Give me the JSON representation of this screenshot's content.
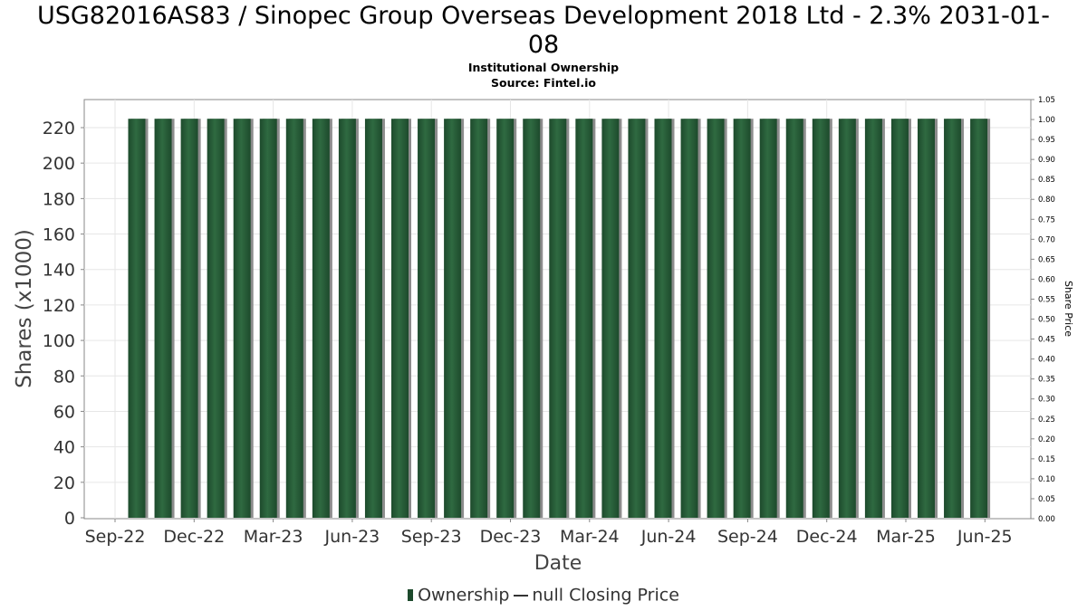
{
  "header": {
    "title_line1": "USG82016AS83 / Sinopec Group Overseas Development 2018 Ltd - 2.3% 2031-01-",
    "title_line2": "08",
    "subtitle": "Institutional Ownership",
    "source": "Source: Fintel.io"
  },
  "legend": {
    "ownership_label": "Ownership",
    "price_label": "null Closing Price"
  },
  "colors": {
    "bar": "#1d4a2c",
    "bar_highlight": "#2f6a41",
    "bar_shadow": "#8c8c8c",
    "grid": "#e6e6e6",
    "axis": "#888888"
  },
  "chart_data": {
    "type": "bar",
    "title": "USG82016AS83 / Sinopec Group Overseas Development 2018 Ltd - 2.3% 2031-01-08",
    "subtitle": "Institutional Ownership",
    "xlabel": "Date",
    "ylabel": "Shares (x1000)",
    "y2label": "Share Price",
    "ylim": [
      0,
      230
    ],
    "y2lim": [
      0,
      1.05
    ],
    "yticks": [
      0,
      20,
      40,
      60,
      80,
      100,
      120,
      140,
      160,
      180,
      200,
      220
    ],
    "y2ticks": [
      "0.00",
      "0.05",
      "0.10",
      "0.15",
      "0.20",
      "0.25",
      "0.30",
      "0.35",
      "0.40",
      "0.45",
      "0.50",
      "0.55",
      "0.60",
      "0.65",
      "0.70",
      "0.75",
      "0.80",
      "0.85",
      "0.90",
      "0.95",
      "1.00",
      "1.05"
    ],
    "xticks": [
      "Sep-22",
      "Dec-22",
      "Mar-23",
      "Jun-23",
      "Sep-23",
      "Dec-23",
      "Mar-24",
      "Jun-24",
      "Sep-24",
      "Dec-24",
      "Mar-25",
      "Jun-25"
    ],
    "grid": true,
    "legend_position": "bottom",
    "series": [
      {
        "name": "Ownership",
        "values": [
          225,
          225,
          225,
          225,
          225,
          225,
          225,
          225,
          225,
          225,
          225,
          225,
          225,
          225,
          225,
          225,
          225,
          225,
          225,
          225,
          225,
          225,
          225,
          225,
          225,
          225,
          225,
          225,
          225,
          225,
          225,
          225,
          225
        ]
      },
      {
        "name": "null Closing Price",
        "values": []
      }
    ]
  }
}
